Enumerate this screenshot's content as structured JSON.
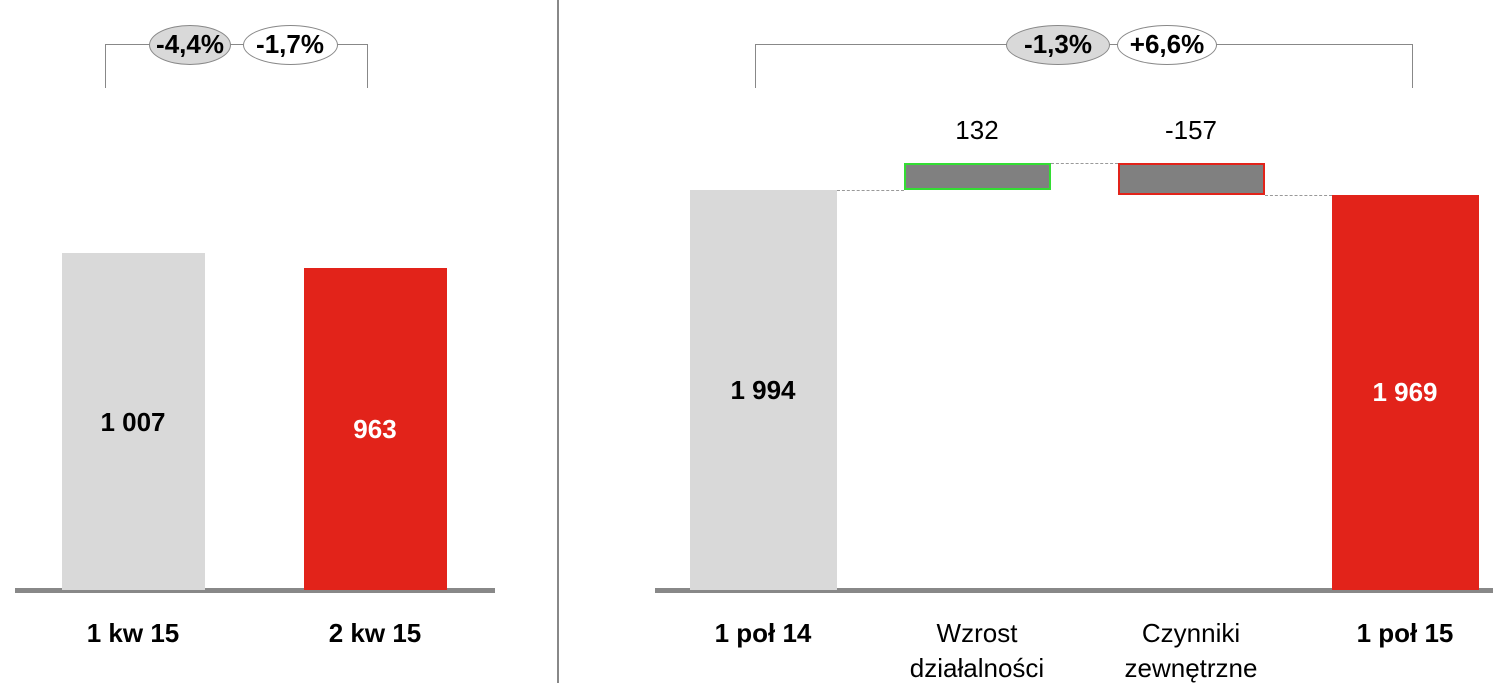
{
  "chart_data": [
    {
      "type": "bar",
      "categories": [
        "1 kw 15",
        "2 kw 15"
      ],
      "values": [
        1007,
        963
      ],
      "value_labels": [
        "1 007",
        "963"
      ],
      "colors": [
        "#d9d9d9",
        "#e2231a"
      ],
      "label_colors": [
        "#000000",
        "#ffffff"
      ],
      "annotations": [
        "-4,4%",
        "-1,7%"
      ]
    },
    {
      "type": "waterfall",
      "categories": [
        "1 poł 14",
        "Wzrost działalności",
        "Czynniki zewnętrzne",
        "1 poł 15"
      ],
      "values": [
        1994,
        132,
        -157,
        1969
      ],
      "value_labels": [
        "1 994",
        "132",
        "-157",
        "1 969"
      ],
      "colors": [
        "#d9d9d9",
        "#808080",
        "#808080",
        "#e2231a"
      ],
      "label_colors": [
        "#000000",
        "#000000",
        "#000000",
        "#ffffff"
      ],
      "positive_border": "#33dd33",
      "negative_border": "#e2231a",
      "annotations": [
        "-1,3%",
        "+6,6%"
      ]
    }
  ]
}
